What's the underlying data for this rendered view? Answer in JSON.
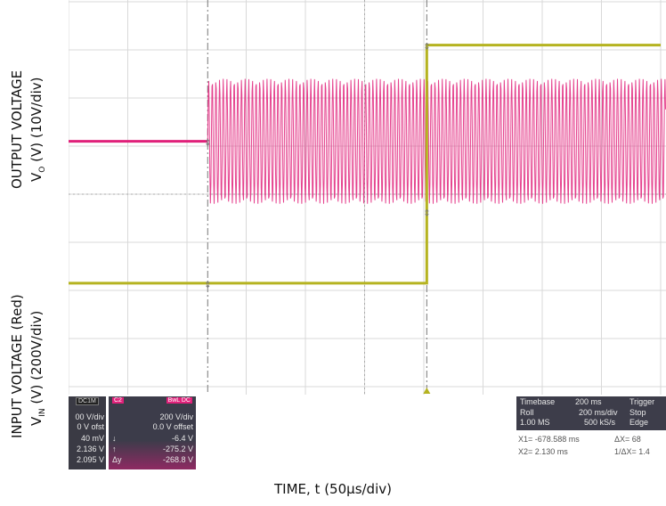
{
  "labels": {
    "output_line1": "OUTPUT VOLTAGE",
    "output_line2_prefix": "V",
    "output_line2_sub": "O",
    "output_line2_suffix": " (V) (10V/div)",
    "input_line1": "INPUT VOLTAGE (Red)",
    "input_line2_prefix": "V",
    "input_line2_sub": "IN",
    "input_line2_suffix": " (V) (200V/div)",
    "x_label": "TIME, t (50µs/div)"
  },
  "chart_data": {
    "type": "line",
    "xlabel": "TIME, t (50µs/div)",
    "x_unit": "div",
    "xlim": [
      0,
      10
    ],
    "ylim": [
      -4,
      4
    ],
    "grid": true,
    "series": [
      {
        "color": "#e0217a",
        "points": [
          [
            0,
            1.1
          ],
          [
            2.35,
            1.1
          ],
          [
            2.35,
            "oscillating ±1.3 div around 1.1"
          ],
          [
            10,
            "oscillating"
          ]
        ]
      },
      {
        "color": "#b5b320",
        "points": [
          [
            0,
            -1.85
          ],
          [
            6.05,
            -1.85
          ],
          [
            6.05,
            3.1
          ],
          [
            10,
            3.1
          ]
        ]
      }
    ],
    "cursors_div": [
      2.35,
      6.05
    ]
  },
  "ch1_panel": {
    "header": "DC1M",
    "rows": [
      "00 V/div",
      "0 V ofst",
      "40 mV",
      "2.136 V",
      "2.095 V"
    ]
  },
  "ch2_panel": {
    "header_left": "C2",
    "header_right": "BwL DC",
    "rows": [
      "200 V/div",
      "0.0 V offset",
      "-6.4 V",
      "-275.2 V",
      "-268.8 V"
    ],
    "row_symbols": [
      "",
      "",
      "↓",
      "↑",
      "Δy"
    ]
  },
  "timebase_panel": {
    "title": "Timebase",
    "timebase_value": "200 ms",
    "trigger_title": "Trigger",
    "row1_left": "Roll",
    "row1_mid": "200 ms/div",
    "row1_right": "Stop",
    "row2_left": "1.00 MS",
    "row2_mid": "500 kS/s",
    "row2_right": "Edge",
    "x1": "X1=  -678.588 ms",
    "dx": "ΔX=  68",
    "x2": "X2=       2.130 ms",
    "inv_dx": "1/ΔX=  1.4"
  },
  "colors": {
    "magenta": "#e0217a",
    "olive": "#b5b320",
    "grid": "#d9d9d9",
    "panel_bg": "#3d3d4a"
  }
}
